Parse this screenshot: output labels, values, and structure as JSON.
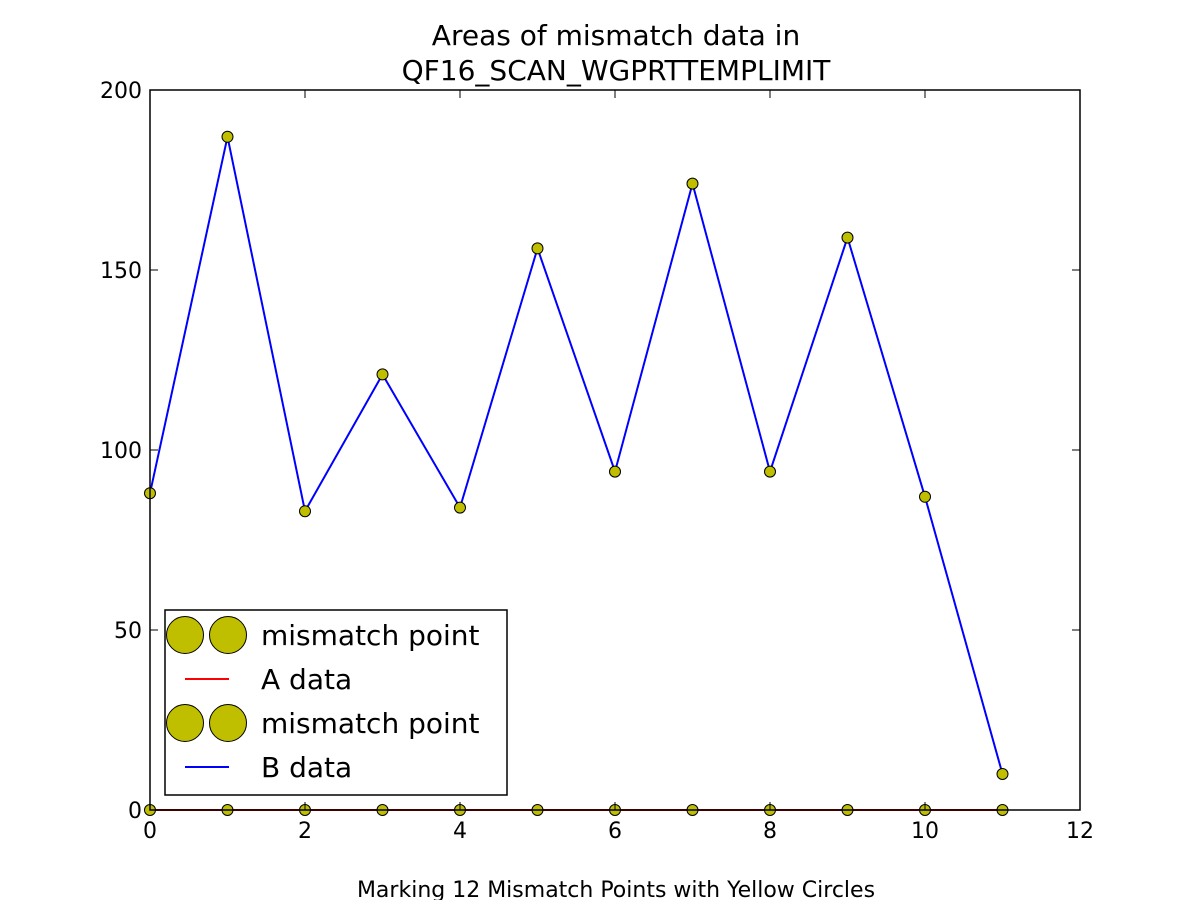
{
  "chart_data": {
    "type": "line",
    "title_line1": "Areas of mismatch data in",
    "title_line2": "QF16_SCAN_WGPRTTEMPLIMIT",
    "xlabel": "Marking 12 Mismatch Points with Yellow Circles",
    "ylabel": "",
    "xlim": [
      0,
      12
    ],
    "ylim": [
      0,
      200
    ],
    "x_ticks": [
      0,
      2,
      4,
      6,
      8,
      10,
      12
    ],
    "y_ticks": [
      0,
      50,
      100,
      150,
      200
    ],
    "grid": false,
    "legend_position": "lower-left",
    "x": [
      0,
      1,
      2,
      3,
      4,
      5,
      6,
      7,
      8,
      9,
      10,
      11
    ],
    "series": [
      {
        "name": "A data",
        "color": "#ff0000",
        "values": [
          0,
          0,
          0,
          0,
          0,
          0,
          0,
          0,
          0,
          0,
          0,
          0
        ]
      },
      {
        "name": "B data",
        "color": "#0000ff",
        "values": [
          88,
          187,
          83,
          121,
          84,
          156,
          94,
          174,
          94,
          159,
          87,
          10
        ]
      }
    ],
    "markers": [
      {
        "name": "mismatch point",
        "color": "#bfbf00",
        "values": [
          0,
          0,
          0,
          0,
          0,
          0,
          0,
          0,
          0,
          0,
          0,
          0
        ]
      },
      {
        "name": "mismatch point",
        "color": "#bfbf00",
        "values": [
          88,
          187,
          83,
          121,
          84,
          156,
          94,
          174,
          94,
          159,
          87,
          10
        ]
      }
    ],
    "legend": [
      "mismatch point",
      "A data",
      "mismatch point",
      "B data"
    ]
  }
}
